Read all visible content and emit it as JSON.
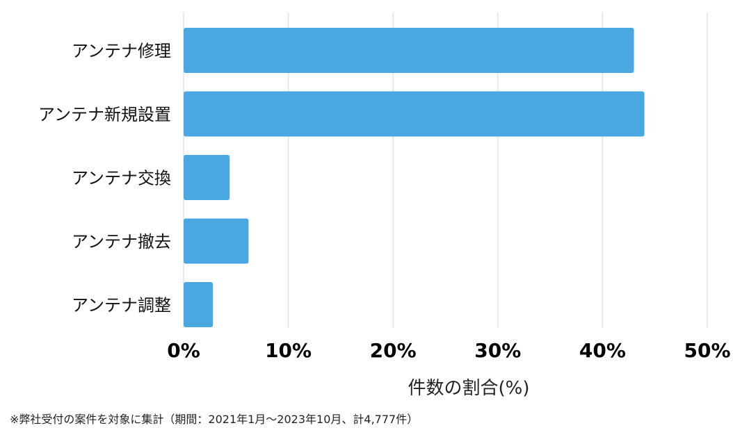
{
  "chart_data": {
    "type": "bar",
    "orientation": "horizontal",
    "categories": [
      "アンテナ修理",
      "アンテナ新規設置",
      "アンテナ交換",
      "アンテナ撤去",
      "アンテナ調整"
    ],
    "values": [
      43,
      44,
      4.4,
      6.2,
      2.8
    ],
    "xlim": [
      0,
      50
    ],
    "xticks": [
      0,
      10,
      20,
      30,
      40,
      50
    ],
    "xtick_labels": [
      "0%",
      "10%",
      "20%",
      "30%",
      "40%",
      "50%"
    ],
    "xlabel": "件数の割合(%)",
    "ylabel": "",
    "title": "",
    "grid": "vertical",
    "bar_color": "#4aa8e0",
    "grid_color": "#e3e3e3"
  },
  "footnote": "※弊社受付の案件を対象に集計（期間：2021年1月〜2023年10月、計4,777件）"
}
